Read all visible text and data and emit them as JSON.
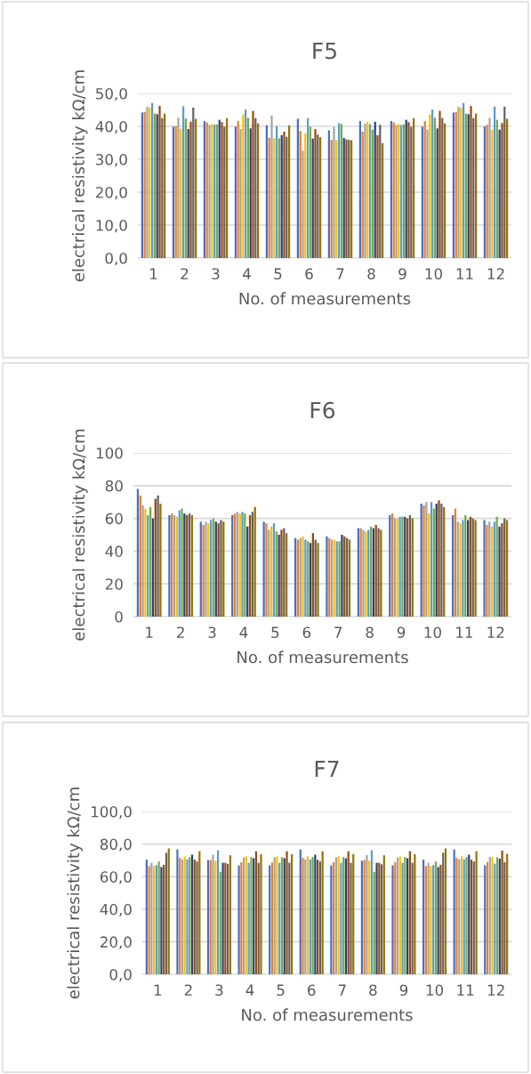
{
  "chart_data": [
    {
      "type": "bar",
      "title": "F5",
      "xlabel": "No. of measurements",
      "ylabel": "electrical resistivity kΩ/cm",
      "grid": "y",
      "legend": false,
      "categories": [
        "1",
        "2",
        "3",
        "4",
        "5",
        "6",
        "7",
        "8",
        "9",
        "10",
        "11",
        "12"
      ],
      "ylim": [
        0,
        50
      ],
      "yticks": [
        {
          "value": 0,
          "label": "0,0"
        },
        {
          "value": 10,
          "label": "10,0"
        },
        {
          "value": 20,
          "label": "20,0"
        },
        {
          "value": 30,
          "label": "30,0"
        },
        {
          "value": 40,
          "label": "40,0"
        },
        {
          "value": 50,
          "label": "50,0"
        }
      ],
      "series": [
        {
          "color": "#4472c4",
          "values": [
            44.2,
            39.9,
            41.6,
            39.9,
            40.3,
            42.3,
            38.8,
            41.6,
            41.6,
            39.9,
            44.2,
            40.0
          ]
        },
        {
          "color": "#ed7d31",
          "values": [
            44.4,
            40.1,
            41.2,
            41.6,
            36.5,
            38.6,
            35.9,
            38.4,
            41.2,
            41.6,
            44.4,
            40.5
          ]
        },
        {
          "color": "#a5a5a5",
          "values": [
            46.0,
            42.6,
            40.4,
            39.2,
            43.3,
            32.6,
            39.8,
            40.8,
            40.4,
            39.1,
            46.0,
            42.6
          ]
        },
        {
          "color": "#ffc000",
          "values": [
            45.7,
            39.3,
            40.7,
            43.6,
            36.4,
            37.8,
            35.8,
            41.4,
            40.7,
            43.6,
            45.7,
            39.0
          ]
        },
        {
          "color": "#5b9bd5",
          "values": [
            47.1,
            46.1,
            40.5,
            45.1,
            40.1,
            42.5,
            41.0,
            40.7,
            40.4,
            45.1,
            47.1,
            46.0
          ]
        },
        {
          "color": "#70ad47",
          "values": [
            43.9,
            42.4,
            40.6,
            42.6,
            36.4,
            39.9,
            40.7,
            39.0,
            40.6,
            42.6,
            43.9,
            42.0
          ]
        },
        {
          "color": "#264478",
          "values": [
            43.7,
            39.2,
            42.0,
            39.4,
            37.3,
            36.3,
            36.5,
            41.4,
            42.0,
            39.4,
            43.7,
            39.0
          ]
        },
        {
          "color": "#9e480e",
          "values": [
            46.2,
            41.4,
            41.3,
            44.7,
            38.4,
            39.2,
            36.0,
            37.3,
            41.3,
            44.7,
            46.2,
            41.0
          ]
        },
        {
          "color": "#636363",
          "values": [
            42.5,
            45.7,
            39.9,
            42.5,
            36.8,
            37.5,
            35.9,
            40.5,
            39.9,
            42.5,
            42.5,
            46.0
          ]
        },
        {
          "color": "#997300",
          "values": [
            43.9,
            42.3,
            42.5,
            40.9,
            40.3,
            36.7,
            35.8,
            34.9,
            42.5,
            40.9,
            43.9,
            42.3
          ]
        }
      ]
    },
    {
      "type": "bar",
      "title": "F6",
      "xlabel": "No. of measurements",
      "ylabel": "electrical resistivity kΩ/cm",
      "grid": "y",
      "legend": false,
      "categories": [
        "1",
        "2",
        "3",
        "4",
        "5",
        "6",
        "7",
        "8",
        "9",
        "10",
        "11",
        "12"
      ],
      "ylim": [
        0,
        100
      ],
      "yticks": [
        0,
        20,
        40,
        60,
        80,
        100
      ],
      "series": [
        {
          "color": "#4472c4",
          "values": [
            78,
            62,
            58,
            62,
            58,
            48,
            49,
            54,
            62,
            69,
            62,
            59
          ]
        },
        {
          "color": "#ed7d31",
          "values": [
            74,
            63,
            56,
            63,
            57,
            47,
            48,
            54,
            63,
            68,
            66,
            56
          ]
        },
        {
          "color": "#a5a5a5",
          "values": [
            68,
            62,
            58,
            64,
            53,
            48,
            47,
            53,
            60,
            70,
            58,
            58
          ]
        },
        {
          "color": "#ffc000",
          "values": [
            66,
            61,
            57,
            63,
            55,
            49,
            47,
            52,
            60,
            63,
            57,
            55
          ]
        },
        {
          "color": "#5b9bd5",
          "values": [
            62,
            65,
            59,
            64,
            57,
            47,
            46,
            53,
            61,
            70,
            59,
            58
          ]
        },
        {
          "color": "#70ad47",
          "values": [
            67,
            66,
            60,
            63,
            52,
            46,
            46,
            55,
            61,
            66,
            62,
            61
          ]
        },
        {
          "color": "#264478",
          "values": [
            60,
            63,
            58,
            55,
            50,
            45,
            50,
            54,
            61,
            69,
            59,
            55
          ]
        },
        {
          "color": "#9e480e",
          "values": [
            72,
            62,
            57,
            62,
            53,
            51,
            49,
            56,
            60,
            71,
            61,
            57
          ]
        },
        {
          "color": "#636363",
          "values": [
            74,
            63,
            59,
            64,
            54,
            47,
            48,
            54,
            62,
            69,
            60,
            60
          ]
        },
        {
          "color": "#997300",
          "values": [
            69,
            62,
            58,
            67,
            51,
            45,
            47,
            53,
            60,
            67,
            59,
            59
          ]
        }
      ]
    },
    {
      "type": "bar",
      "title": "F7",
      "xlabel": "No. of measurements",
      "ylabel": "electrical resistivity kΩ/cm",
      "grid": "y",
      "legend": false,
      "categories": [
        "1",
        "2",
        "3",
        "4",
        "5",
        "6",
        "7",
        "8",
        "9",
        "10",
        "11",
        "12"
      ],
      "ylim": [
        0,
        100
      ],
      "yticks": [
        {
          "value": 0,
          "label": "0,0"
        },
        {
          "value": 20,
          "label": "20,0"
        },
        {
          "value": 40,
          "label": "40,0"
        },
        {
          "value": 60,
          "label": "60,0"
        },
        {
          "value": 80,
          "label": "80,0"
        },
        {
          "value": 100,
          "label": "100,0"
        }
      ],
      "series": [
        {
          "color": "#4472c4",
          "values": [
            70.4,
            76.7,
            70.2,
            66.9,
            66.9,
            76.7,
            66.9,
            69.8,
            66.9,
            70.4,
            76.7,
            67
          ]
        },
        {
          "color": "#ed7d31",
          "values": [
            66.5,
            71.5,
            70.2,
            68.9,
            68.7,
            71.5,
            68.9,
            70.2,
            68.9,
            66.5,
            71.5,
            69
          ]
        },
        {
          "color": "#a5a5a5",
          "values": [
            68.5,
            70.6,
            73.5,
            71.8,
            71.8,
            70.6,
            71.8,
            73.3,
            71.8,
            68.5,
            70.6,
            72
          ]
        },
        {
          "color": "#ffc000",
          "values": [
            66.5,
            72.5,
            69.8,
            72.5,
            72.5,
            72.5,
            72.5,
            69.8,
            72.5,
            66.5,
            72.5,
            72
          ]
        },
        {
          "color": "#5b9bd5",
          "values": [
            67.1,
            70.6,
            76.2,
            68.5,
            68.5,
            70.6,
            68.5,
            76.2,
            68.5,
            67.1,
            70.6,
            68
          ]
        },
        {
          "color": "#70ad47",
          "values": [
            69.3,
            72.0,
            63,
            72.0,
            72.0,
            72.0,
            72.0,
            63,
            72.0,
            69.3,
            72.0,
            72
          ]
        },
        {
          "color": "#264478",
          "values": [
            65.9,
            73.5,
            68.5,
            71.3,
            71.3,
            73.5,
            71.3,
            68.5,
            71.3,
            65.9,
            73.5,
            71
          ]
        },
        {
          "color": "#9e480e",
          "values": [
            67.3,
            70.4,
            68.5,
            75.6,
            75.6,
            70.4,
            75.6,
            68.5,
            75.6,
            67.3,
            70.4,
            76
          ]
        },
        {
          "color": "#636363",
          "values": [
            74.7,
            69.3,
            67.8,
            68.5,
            68.5,
            69.3,
            68.5,
            67.6,
            68.5,
            74.7,
            69.3,
            69
          ]
        },
        {
          "color": "#997300",
          "values": [
            77.3,
            75.6,
            73.1,
            73.8,
            73.8,
            75.6,
            73.8,
            73.1,
            73.8,
            77.3,
            75.6,
            74
          ]
        }
      ]
    }
  ]
}
